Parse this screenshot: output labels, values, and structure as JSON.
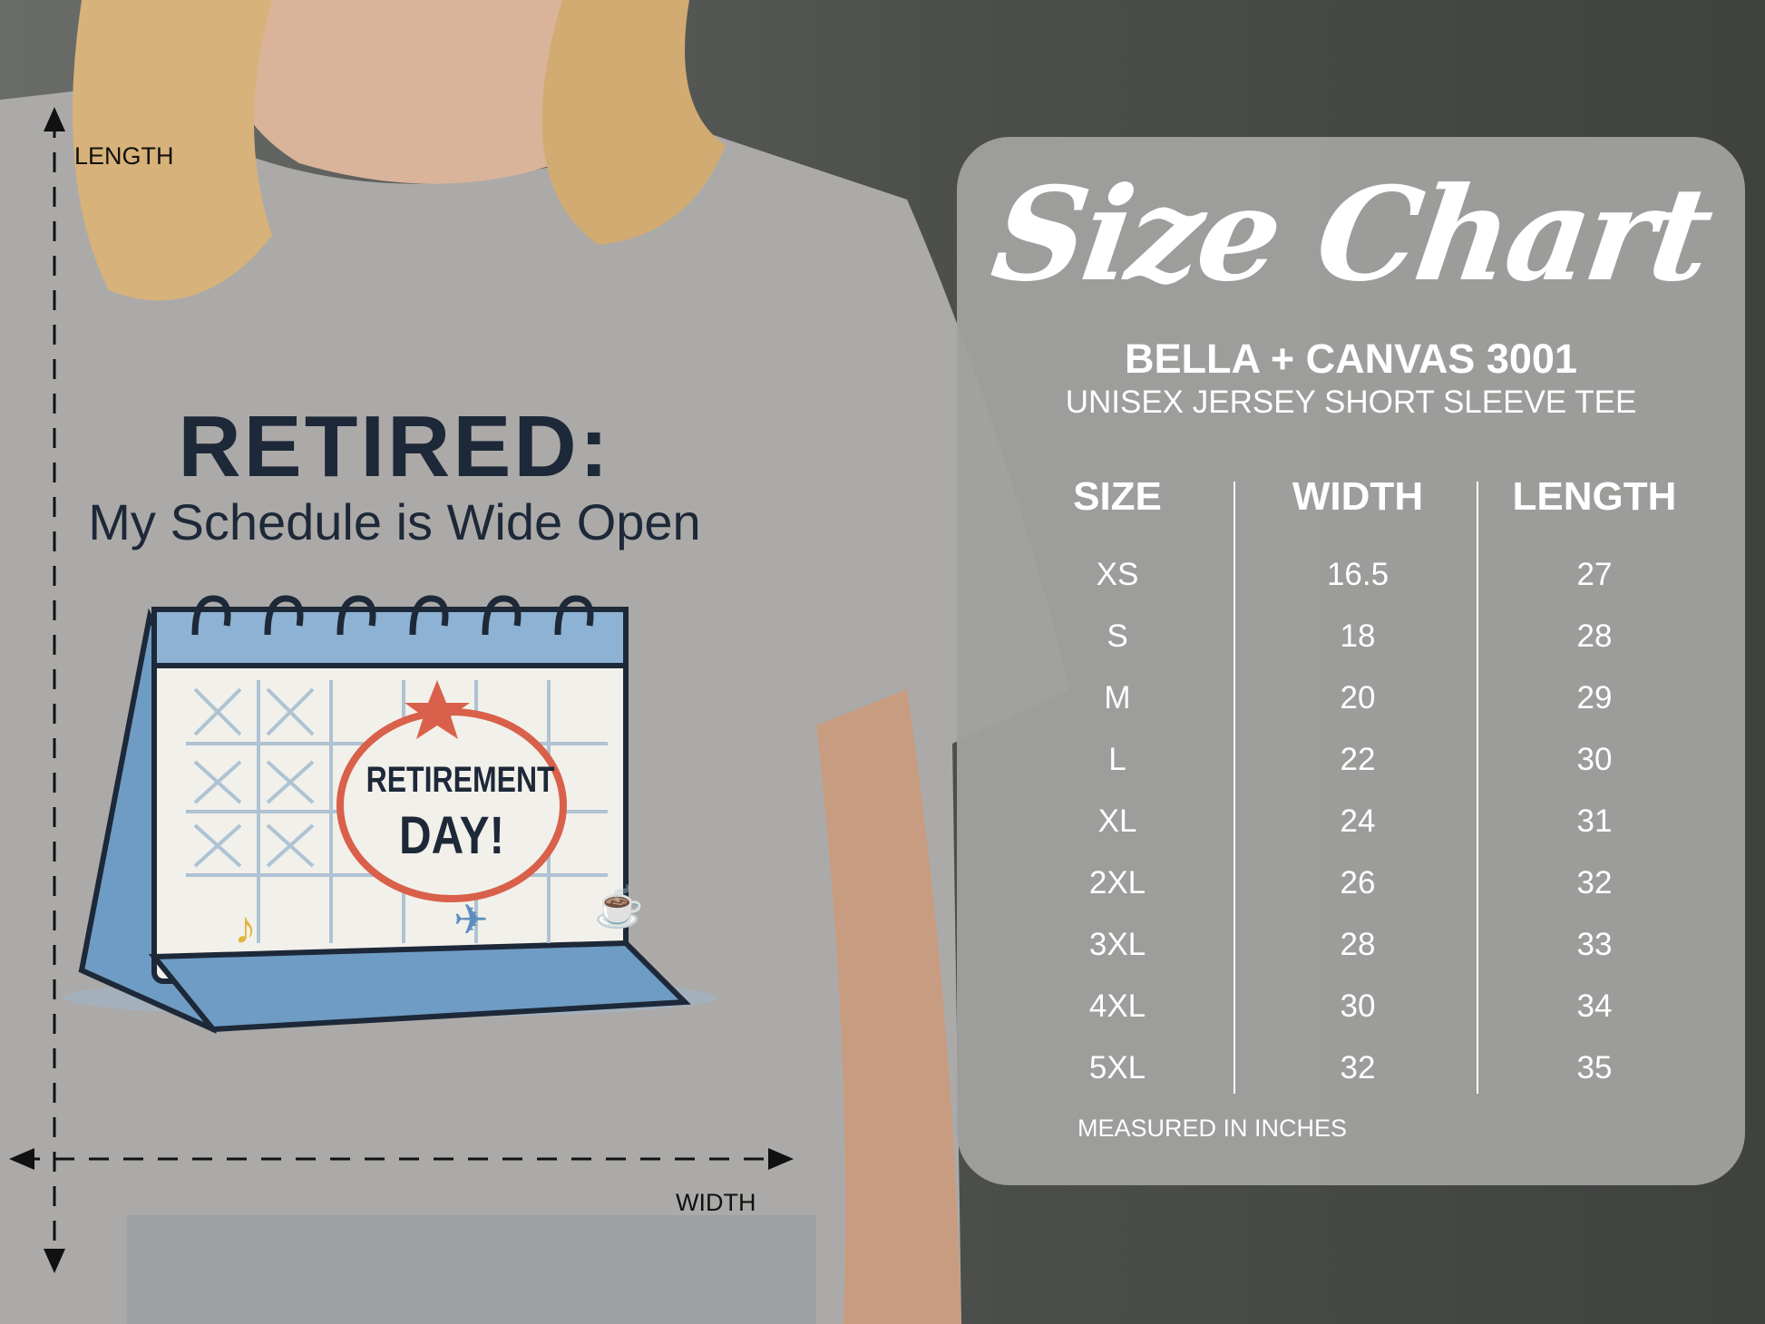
{
  "shirt_print": {
    "headline": "RETIRED:",
    "tagline": "My Schedule is Wide Open",
    "calendar_badge_line1": "RETIREMENT",
    "calendar_badge_line2": "DAY!"
  },
  "measure_labels": {
    "length": "LENGTH",
    "width": "WIDTH"
  },
  "size_chart": {
    "title": "Size Chart",
    "brand": "BELLA + CANVAS 3001",
    "product": "UNISEX JERSEY SHORT SLEEVE TEE",
    "headers": [
      "SIZE",
      "WIDTH",
      "LENGTH"
    ],
    "sizes": [
      "XS",
      "S",
      "M",
      "L",
      "XL",
      "2XL",
      "3XL",
      "4XL",
      "5XL"
    ],
    "widths": [
      "16.5",
      "18",
      "20",
      "22",
      "24",
      "26",
      "28",
      "30",
      "32"
    ],
    "lengths": [
      "27",
      "28",
      "29",
      "30",
      "31",
      "32",
      "33",
      "34",
      "35"
    ],
    "footnote": "MEASURED IN INCHES"
  },
  "colors": {
    "panel": "#a0a09e",
    "shirt": "#aaa8a6",
    "print_text": "#1d2838",
    "calendar_blue": "#6f9cc4",
    "accent_red": "#d9604a"
  }
}
